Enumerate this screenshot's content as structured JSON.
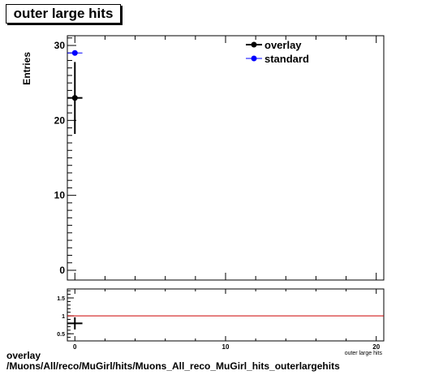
{
  "chart_data": {
    "title": "outer large hits",
    "ylabel": "Entries",
    "xlabel": "outer large hits",
    "type": "scatter",
    "xlim": [
      -0.5,
      20.5
    ],
    "ylim": [
      -1.3,
      31.3
    ],
    "x_ticks": [
      0,
      10,
      20
    ],
    "y_ticks": [
      0,
      10,
      20,
      30
    ],
    "series": [
      {
        "name": "overlay",
        "color": "#000000",
        "points": [
          {
            "x": 0,
            "y": 23,
            "xerr": 0.5,
            "yerr": 4.8
          }
        ]
      },
      {
        "name": "standard",
        "color": "#0000ff",
        "points": [
          {
            "x": 0,
            "y": 29,
            "xerr": 0.5,
            "yerr": 0
          }
        ]
      }
    ],
    "legend": "top-right",
    "ratio_panel": {
      "ylim": [
        0.3,
        1.75
      ],
      "y_ticks": [
        "0.5",
        "1",
        "1.5"
      ],
      "reference_line": 1,
      "reference_color": "#cc0000",
      "points": [
        {
          "x": 0,
          "y": 0.79,
          "xerr": 0.5,
          "yerr": 0.17
        }
      ]
    }
  },
  "footer": {
    "line1": "overlay",
    "line2": "/Muons/All/reco/MuGirl/hits/Muons_All_reco_MuGirl_hits_outerlargehits"
  }
}
